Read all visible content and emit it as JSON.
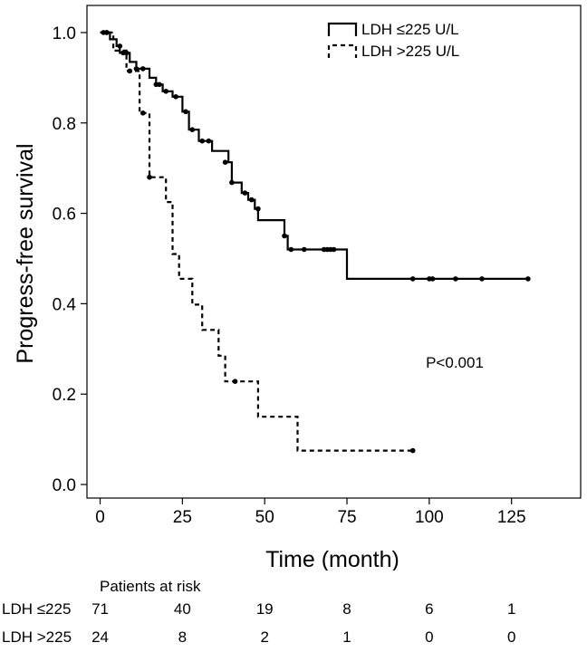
{
  "chart_data": {
    "type": "line",
    "subtype": "kaplan-meier",
    "xlabel": "Time (month)",
    "ylabel": "Progress-free survival",
    "xlim": [
      -4,
      146
    ],
    "ylim": [
      -0.03,
      1.06
    ],
    "xticks": [
      0,
      25,
      50,
      75,
      100,
      125
    ],
    "yticks": [
      0.0,
      0.2,
      0.4,
      0.6,
      0.8,
      1.0
    ],
    "ytick_labels": [
      "0.0",
      "0.2",
      "0.4",
      "0.6",
      "0.8",
      "1.0"
    ],
    "legend": {
      "position": "top-right"
    },
    "annotation": "P<0.001",
    "series": [
      {
        "name": "LDH ≤225 U/L",
        "style": "solid",
        "steps": [
          [
            0,
            1.0
          ],
          [
            3,
            1.0
          ],
          [
            3,
            0.985
          ],
          [
            5,
            0.985
          ],
          [
            5,
            0.97
          ],
          [
            6,
            0.97
          ],
          [
            6,
            0.955
          ],
          [
            9,
            0.955
          ],
          [
            9,
            0.935
          ],
          [
            11,
            0.935
          ],
          [
            11,
            0.92
          ],
          [
            15,
            0.92
          ],
          [
            15,
            0.9
          ],
          [
            17,
            0.9
          ],
          [
            17,
            0.885
          ],
          [
            19,
            0.885
          ],
          [
            19,
            0.87
          ],
          [
            22,
            0.87
          ],
          [
            22,
            0.858
          ],
          [
            25,
            0.858
          ],
          [
            25,
            0.825
          ],
          [
            27,
            0.825
          ],
          [
            27,
            0.785
          ],
          [
            30,
            0.785
          ],
          [
            30,
            0.76
          ],
          [
            34,
            0.76
          ],
          [
            34,
            0.738
          ],
          [
            39,
            0.738
          ],
          [
            39,
            0.713
          ],
          [
            40,
            0.713
          ],
          [
            40,
            0.668
          ],
          [
            43,
            0.668
          ],
          [
            43,
            0.645
          ],
          [
            45,
            0.645
          ],
          [
            45,
            0.63
          ],
          [
            47,
            0.63
          ],
          [
            47,
            0.61
          ],
          [
            48,
            0.61
          ],
          [
            48,
            0.585
          ],
          [
            56,
            0.585
          ],
          [
            56,
            0.55
          ],
          [
            57,
            0.55
          ],
          [
            57,
            0.52
          ],
          [
            75,
            0.52
          ],
          [
            75,
            0.455
          ],
          [
            130,
            0.455
          ]
        ],
        "censor": [
          [
            1,
            1.0
          ],
          [
            2,
            1.0
          ],
          [
            6,
            0.97
          ],
          [
            7,
            0.955
          ],
          [
            8,
            0.955
          ],
          [
            11,
            0.92
          ],
          [
            13,
            0.92
          ],
          [
            17,
            0.885
          ],
          [
            18,
            0.885
          ],
          [
            20,
            0.87
          ],
          [
            23,
            0.858
          ],
          [
            26,
            0.825
          ],
          [
            28,
            0.785
          ],
          [
            31,
            0.76
          ],
          [
            33,
            0.76
          ],
          [
            38,
            0.713
          ],
          [
            40,
            0.668
          ],
          [
            44,
            0.645
          ],
          [
            46,
            0.63
          ],
          [
            48,
            0.61
          ],
          [
            56,
            0.55
          ],
          [
            58,
            0.52
          ],
          [
            62,
            0.52
          ],
          [
            68,
            0.52
          ],
          [
            69,
            0.52
          ],
          [
            70,
            0.52
          ],
          [
            71,
            0.52
          ],
          [
            95,
            0.455
          ],
          [
            100,
            0.455
          ],
          [
            101,
            0.455
          ],
          [
            108,
            0.455
          ],
          [
            116,
            0.455
          ],
          [
            130,
            0.455
          ]
        ]
      },
      {
        "name": "LDH >225 U/L",
        "style": "dashed",
        "steps": [
          [
            0,
            1.0
          ],
          [
            4,
            1.0
          ],
          [
            4,
            0.96
          ],
          [
            8,
            0.96
          ],
          [
            8,
            0.915
          ],
          [
            12,
            0.915
          ],
          [
            12,
            0.822
          ],
          [
            15,
            0.822
          ],
          [
            15,
            0.68
          ],
          [
            20,
            0.68
          ],
          [
            20,
            0.625
          ],
          [
            22,
            0.625
          ],
          [
            22,
            0.51
          ],
          [
            24,
            0.51
          ],
          [
            24,
            0.455
          ],
          [
            28,
            0.455
          ],
          [
            28,
            0.398
          ],
          [
            31,
            0.398
          ],
          [
            31,
            0.342
          ],
          [
            36,
            0.342
          ],
          [
            36,
            0.285
          ],
          [
            38,
            0.285
          ],
          [
            38,
            0.228
          ],
          [
            48,
            0.228
          ],
          [
            48,
            0.15
          ],
          [
            60,
            0.15
          ],
          [
            60,
            0.075
          ],
          [
            95,
            0.075
          ]
        ],
        "censor": [
          [
            2,
            1.0
          ],
          [
            9,
            0.915
          ],
          [
            13,
            0.822
          ],
          [
            15,
            0.68
          ],
          [
            41,
            0.228
          ],
          [
            95,
            0.075
          ]
        ]
      }
    ]
  },
  "risk_table": {
    "title": "Patients at risk",
    "times": [
      0,
      25,
      50,
      75,
      100,
      125
    ],
    "rows": [
      {
        "label": "LDH ≤225",
        "values": [
          "71",
          "40",
          "19",
          "8",
          "6",
          "1"
        ]
      },
      {
        "label": "LDH >225",
        "values": [
          "24",
          "8",
          "2",
          "1",
          "0",
          "0"
        ]
      }
    ]
  }
}
